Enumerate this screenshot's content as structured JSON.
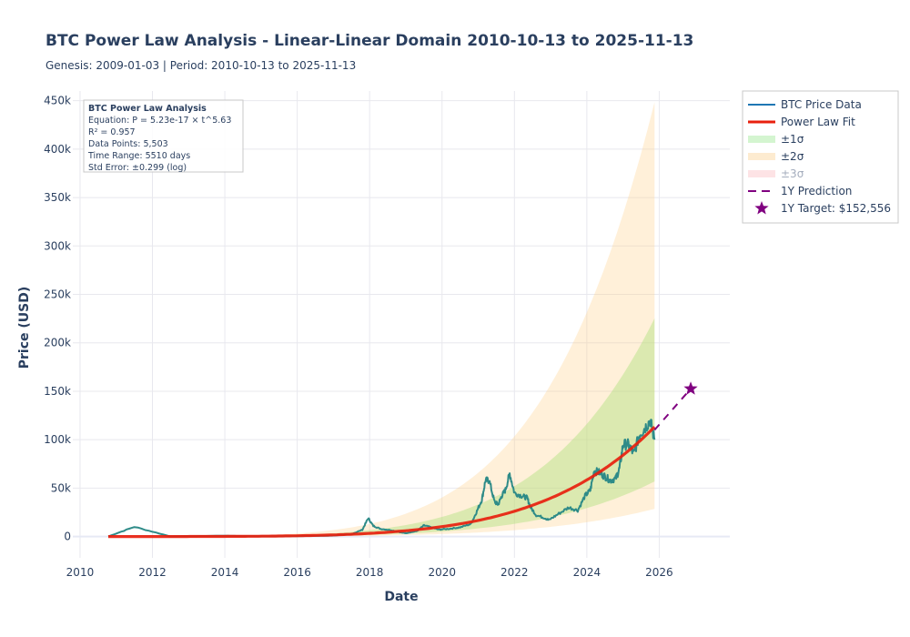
{
  "chart_data": {
    "type": "line",
    "title": "BTC Power Law Analysis - Linear-Linear Domain 2010-10-13 to 2025-11-13",
    "subtitle": "Genesis: 2009-01-03 | Period: 2010-10-13 to 2025-11-13",
    "xlabel": "Date",
    "ylabel": "Price (USD)",
    "xlim": [
      2009.8,
      2027.95
    ],
    "ylim": [
      -22000,
      460000
    ],
    "x_ticks": [
      2010,
      2012,
      2014,
      2016,
      2018,
      2020,
      2022,
      2024,
      2026
    ],
    "x_tick_labels": [
      "2010",
      "2012",
      "2014",
      "2016",
      "2018",
      "2020",
      "2022",
      "2024",
      "2026"
    ],
    "y_ticks": [
      0,
      50000,
      100000,
      150000,
      200000,
      250000,
      300000,
      350000,
      400000,
      450000
    ],
    "y_tick_labels": [
      "0",
      "50k",
      "100k",
      "150k",
      "200k",
      "250k",
      "300k",
      "350k",
      "400k",
      "450k"
    ],
    "grid": true,
    "legend_position": "right-top",
    "genesis_year": 2009.005,
    "model": {
      "coefficient": 5.23e-17,
      "exponent": 5.63,
      "std_error_log10": 0.299,
      "fit_start": 2010.78,
      "fit_end": 2025.87
    },
    "series": [
      {
        "name": "BTC Price Data",
        "color": "#1f77b4",
        "color_in_band": "#2e8b88",
        "x": [
          2010.78,
          2011.5,
          2012.5,
          2013.9,
          2014.5,
          2015.5,
          2016.5,
          2017.0,
          2017.5,
          2017.8,
          2017.96,
          2018.1,
          2018.3,
          2018.6,
          2018.9,
          2019.0,
          2019.3,
          2019.5,
          2019.7,
          2019.9,
          2020.2,
          2020.5,
          2020.8,
          2020.95,
          2021.1,
          2021.2,
          2021.3,
          2021.45,
          2021.55,
          2021.65,
          2021.75,
          2021.87,
          2022.0,
          2022.2,
          2022.35,
          2022.45,
          2022.6,
          2022.85,
          2022.95,
          2023.2,
          2023.5,
          2023.75,
          2023.95,
          2024.1,
          2024.2,
          2024.35,
          2024.5,
          2024.65,
          2024.8,
          2024.9,
          2025.0,
          2025.15,
          2025.3,
          2025.45,
          2025.6,
          2025.75,
          2025.87
        ],
        "y": [
          100,
          10000,
          10,
          800,
          500,
          300,
          600,
          1000,
          2500,
          7000,
          19000,
          11000,
          8000,
          6500,
          4000,
          3500,
          5500,
          11500,
          9500,
          7200,
          8000,
          9500,
          13000,
          25000,
          38000,
          58000,
          58000,
          36000,
          33000,
          42000,
          48000,
          65000,
          45000,
          42000,
          40000,
          30000,
          22000,
          19000,
          17000,
          23000,
          30000,
          27000,
          42000,
          48000,
          68000,
          66000,
          62000,
          58000,
          60000,
          70000,
          95000,
          95000,
          85000,
          105000,
          112000,
          120000,
          100000
        ]
      },
      {
        "name": "Power Law Fit",
        "color": "#e8200e",
        "kind": "power_law"
      },
      {
        "name": "±1σ",
        "color": "rgba(144,238,144,0.35)",
        "legend_swatch": "#d4f5d0",
        "sigma": 1
      },
      {
        "name": "±2σ",
        "color": "rgba(255,218,150,0.35)",
        "legend_swatch": "#fdebd0",
        "sigma": 2
      },
      {
        "name": "±3σ",
        "color": "rgba(255,182,193,0.3)",
        "legend_swatch": "#fde3e5",
        "sigma": 3,
        "visible": false
      },
      {
        "name": "1Y Prediction",
        "color": "#800080",
        "dash": true,
        "x": [
          2025.87,
          2026.87
        ],
        "y": [
          110000,
          152556
        ]
      },
      {
        "name": "1Y Target: $152,556",
        "color": "#800080",
        "marker": "star",
        "x": [
          2026.87
        ],
        "y": [
          152556
        ]
      }
    ],
    "annotation": {
      "title": "BTC Power Law Analysis",
      "lines": [
        "Equation: P = 5.23e-17 × t^5.63",
        "R² = 0.957",
        "Data Points: 5,503",
        "Time Range: 5510 days",
        "Std Error: ±0.299 (log)"
      ]
    }
  }
}
